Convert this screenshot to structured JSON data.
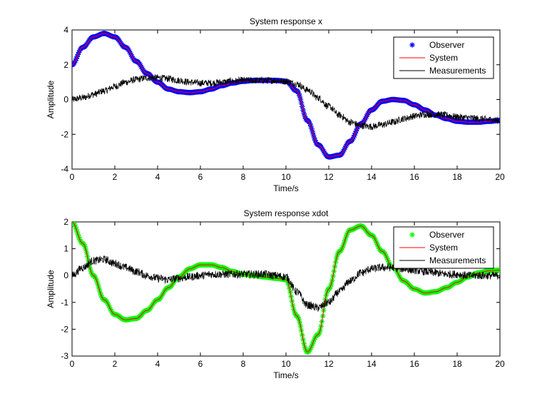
{
  "chart_data": [
    {
      "type": "line",
      "title": "System response x",
      "xlabel": "Time/s",
      "ylabel": "Amplitude",
      "xlim": [
        0,
        20
      ],
      "ylim": [
        -4,
        4
      ],
      "xticks": [
        "0",
        "2",
        "4",
        "6",
        "8",
        "10",
        "12",
        "14",
        "16",
        "18",
        "20"
      ],
      "yticks": [
        "-4",
        "-2",
        "0",
        "2",
        "4"
      ],
      "grid": false,
      "legend_position": "top-right",
      "series": [
        {
          "name": "Observer",
          "color": "#0000ff",
          "marker": "asterisk",
          "style": "markers",
          "x": [
            0,
            0.5,
            1,
            1.5,
            2,
            2.5,
            3,
            3.5,
            4,
            4.5,
            5,
            5.5,
            6,
            6.5,
            7,
            7.5,
            8,
            8.5,
            9,
            9.5,
            10,
            10.5,
            11,
            11.5,
            12,
            12.5,
            13,
            13.5,
            14,
            14.5,
            15,
            15.5,
            16,
            16.5,
            17,
            17.5,
            18,
            18.5,
            19,
            19.5,
            20
          ],
          "y": [
            2.0,
            3.0,
            3.6,
            3.8,
            3.6,
            3.0,
            2.2,
            1.5,
            1.0,
            0.6,
            0.45,
            0.4,
            0.45,
            0.6,
            0.8,
            0.95,
            1.05,
            1.1,
            1.1,
            1.1,
            1.05,
            0.5,
            -1.2,
            -2.6,
            -3.3,
            -3.2,
            -2.4,
            -1.4,
            -0.6,
            -0.1,
            0.0,
            -0.05,
            -0.3,
            -0.6,
            -0.9,
            -1.1,
            -1.25,
            -1.3,
            -1.3,
            -1.25,
            -1.2
          ]
        },
        {
          "name": "System",
          "color": "#ff0000",
          "style": "line",
          "x": [
            0,
            0.5,
            1,
            1.5,
            2,
            2.5,
            3,
            3.5,
            4,
            4.5,
            5,
            5.5,
            6,
            6.5,
            7,
            7.5,
            8,
            8.5,
            9,
            9.5,
            10,
            10.5,
            11,
            11.5,
            12,
            12.5,
            13,
            13.5,
            14,
            14.5,
            15,
            15.5,
            16,
            16.5,
            17,
            17.5,
            18,
            18.5,
            19,
            19.5,
            20
          ],
          "y": [
            2.0,
            3.0,
            3.6,
            3.8,
            3.6,
            3.0,
            2.2,
            1.5,
            1.0,
            0.6,
            0.45,
            0.4,
            0.45,
            0.6,
            0.8,
            0.95,
            1.05,
            1.1,
            1.1,
            1.1,
            1.05,
            0.5,
            -1.2,
            -2.6,
            -3.3,
            -3.2,
            -2.4,
            -1.4,
            -0.6,
            -0.1,
            0.0,
            -0.05,
            -0.3,
            -0.6,
            -0.9,
            -1.1,
            -1.25,
            -1.3,
            -1.3,
            -1.25,
            -1.2
          ]
        },
        {
          "name": "Measurements",
          "color": "#000000",
          "style": "noisy-line",
          "noise_amplitude": 0.2,
          "x": [
            0,
            0.5,
            1,
            1.5,
            2,
            2.5,
            3,
            3.5,
            4,
            4.5,
            5,
            5.5,
            6,
            6.5,
            7,
            7.5,
            8,
            8.5,
            9,
            9.5,
            10,
            10.5,
            11,
            11.5,
            12,
            12.5,
            13,
            13.5,
            14,
            14.5,
            15,
            15.5,
            16,
            16.5,
            17,
            17.5,
            18,
            18.5,
            19,
            19.5,
            20
          ],
          "y": [
            0.0,
            0.1,
            0.3,
            0.5,
            0.75,
            1.0,
            1.15,
            1.25,
            1.25,
            1.2,
            1.1,
            1.0,
            0.95,
            0.95,
            1.0,
            1.05,
            1.1,
            1.1,
            1.1,
            1.1,
            1.05,
            0.9,
            0.55,
            0.1,
            -0.4,
            -0.9,
            -1.3,
            -1.5,
            -1.55,
            -1.45,
            -1.3,
            -1.1,
            -0.95,
            -0.85,
            -0.85,
            -0.9,
            -1.0,
            -1.05,
            -1.1,
            -1.15,
            -1.2
          ]
        }
      ]
    },
    {
      "type": "line",
      "title": "System response xdot",
      "xlabel": "Time/s",
      "ylabel": "Amplitude",
      "xlim": [
        0,
        20
      ],
      "ylim": [
        -3,
        2
      ],
      "xticks": [
        "0",
        "2",
        "4",
        "6",
        "8",
        "10",
        "12",
        "14",
        "16",
        "18",
        "20"
      ],
      "yticks": [
        "-3",
        "-2",
        "-1",
        "0",
        "1",
        "2"
      ],
      "grid": false,
      "legend_position": "top-right",
      "series": [
        {
          "name": "Observer",
          "color": "#00ff00",
          "marker": "asterisk",
          "style": "markers",
          "x": [
            0,
            0.5,
            1,
            1.5,
            2,
            2.5,
            3,
            3.5,
            4,
            4.5,
            5,
            5.5,
            6,
            6.5,
            7,
            7.5,
            8,
            8.5,
            9,
            9.5,
            10,
            10.5,
            11,
            11.5,
            12,
            12.5,
            13,
            13.5,
            14,
            14.5,
            15,
            15.5,
            16,
            16.5,
            17,
            17.5,
            18,
            18.5,
            19,
            19.5,
            20
          ],
          "y": [
            2.0,
            1.2,
            0.0,
            -0.9,
            -1.45,
            -1.65,
            -1.6,
            -1.3,
            -0.9,
            -0.45,
            -0.05,
            0.25,
            0.4,
            0.4,
            0.3,
            0.15,
            0.05,
            0.0,
            -0.05,
            -0.1,
            -0.15,
            -1.5,
            -2.85,
            -2.2,
            -0.5,
            0.9,
            1.7,
            1.85,
            1.5,
            0.9,
            0.3,
            -0.2,
            -0.5,
            -0.65,
            -0.6,
            -0.45,
            -0.25,
            -0.05,
            0.1,
            0.18,
            0.2
          ]
        },
        {
          "name": "System",
          "color": "#ff0000",
          "style": "line",
          "x": [
            0,
            0.5,
            1,
            1.5,
            2,
            2.5,
            3,
            3.5,
            4,
            4.5,
            5,
            5.5,
            6,
            6.5,
            7,
            7.5,
            8,
            8.5,
            9,
            9.5,
            10,
            10.5,
            11,
            11.5,
            12,
            12.5,
            13,
            13.5,
            14,
            14.5,
            15,
            15.5,
            16,
            16.5,
            17,
            17.5,
            18,
            18.5,
            19,
            19.5,
            20
          ],
          "y": [
            2.0,
            1.2,
            0.0,
            -0.9,
            -1.45,
            -1.65,
            -1.6,
            -1.3,
            -0.9,
            -0.45,
            -0.05,
            0.25,
            0.4,
            0.4,
            0.3,
            0.15,
            0.05,
            0.0,
            -0.05,
            -0.1,
            -0.15,
            -1.5,
            -2.85,
            -2.2,
            -0.5,
            0.9,
            1.7,
            1.85,
            1.5,
            0.9,
            0.3,
            -0.2,
            -0.5,
            -0.65,
            -0.6,
            -0.45,
            -0.25,
            -0.05,
            0.1,
            0.18,
            0.2
          ]
        },
        {
          "name": "Measurements",
          "color": "#000000",
          "style": "noisy-line",
          "noise_amplitude": 0.15,
          "x": [
            0,
            0.5,
            1,
            1.5,
            2,
            2.5,
            3,
            3.5,
            4,
            4.5,
            5,
            5.5,
            6,
            6.5,
            7,
            7.5,
            8,
            8.5,
            9,
            9.5,
            10,
            10.5,
            11,
            11.5,
            12,
            12.5,
            13,
            13.5,
            14,
            14.5,
            15,
            15.5,
            16,
            16.5,
            17,
            17.5,
            18,
            18.5,
            19,
            19.5,
            20
          ],
          "y": [
            0.0,
            0.3,
            0.55,
            0.6,
            0.45,
            0.3,
            0.15,
            0.0,
            -0.1,
            -0.15,
            -0.1,
            -0.05,
            0.0,
            0.05,
            0.05,
            0.05,
            0.05,
            0.05,
            0.05,
            0.0,
            -0.05,
            -0.6,
            -1.1,
            -1.2,
            -1.0,
            -0.6,
            -0.2,
            0.1,
            0.25,
            0.3,
            0.3,
            0.25,
            0.2,
            0.15,
            0.1,
            0.05,
            0.05,
            0.0,
            0.0,
            0.0,
            0.0
          ]
        }
      ]
    }
  ]
}
